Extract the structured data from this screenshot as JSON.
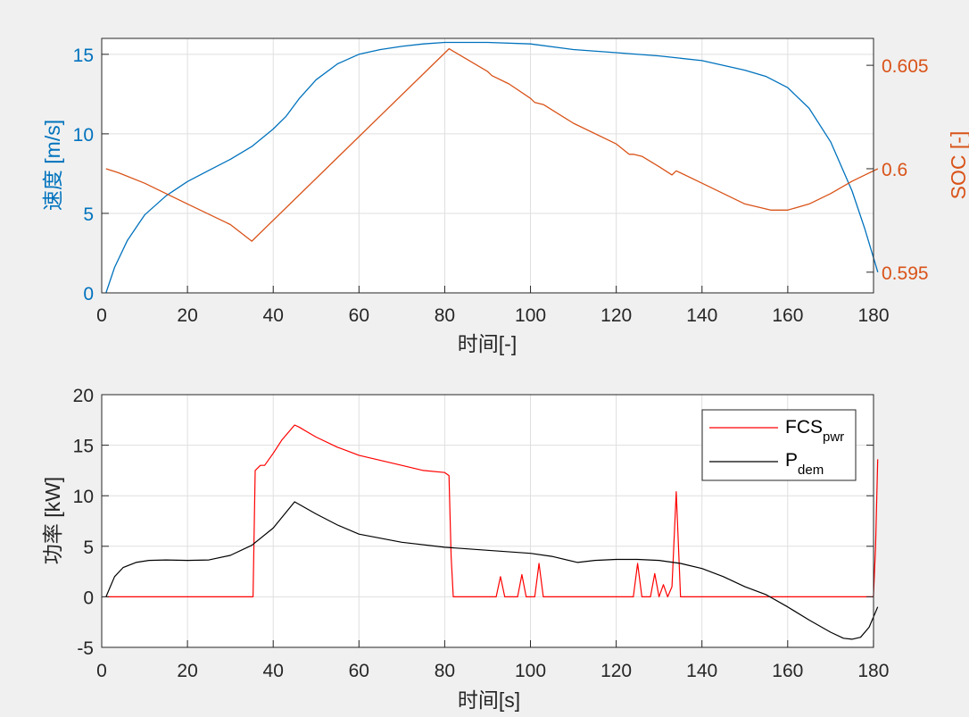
{
  "chart_data": [
    {
      "type": "line",
      "xlabel": "时间[-]",
      "ylabel_left": "速度 [m/s]",
      "ylabel_right": "SOC [-]",
      "xlim": [
        0,
        180
      ],
      "ylim_left": [
        0,
        16
      ],
      "ylim_right": [
        0.594,
        0.6063
      ],
      "xticks": [
        "0",
        "20",
        "40",
        "60",
        "80",
        "100",
        "120",
        "140",
        "160",
        "180"
      ],
      "yticks_left": [
        "0",
        "5",
        "10",
        "15"
      ],
      "yticks_right": [
        "0.595",
        "0.6",
        "0.605"
      ],
      "grid": true,
      "colors": {
        "left": "#0072bd",
        "right": "#d95319"
      },
      "series": [
        {
          "axis": "left",
          "color": "#0072bd",
          "x": [
            1,
            3,
            6,
            10,
            15,
            20,
            25,
            30,
            35,
            40,
            43,
            46,
            50,
            55,
            60,
            65,
            70,
            75,
            80,
            85,
            90,
            100,
            110,
            120,
            130,
            140,
            145,
            150,
            155,
            160,
            165,
            170,
            175,
            178,
            181
          ],
          "y": [
            0,
            1.6,
            3.3,
            4.9,
            6.1,
            7.0,
            7.7,
            8.4,
            9.2,
            10.3,
            11.1,
            12.2,
            13.4,
            14.4,
            15.0,
            15.3,
            15.5,
            15.65,
            15.75,
            15.75,
            15.75,
            15.65,
            15.3,
            15.1,
            14.9,
            14.6,
            14.3,
            14.0,
            13.6,
            12.9,
            11.6,
            9.5,
            6.4,
            4.0,
            1.3
          ]
        },
        {
          "axis": "right",
          "color": "#d95319",
          "x": [
            1,
            4,
            10,
            20,
            30,
            35,
            81,
            90,
            91,
            95,
            100,
            101,
            103,
            110,
            120,
            123,
            124,
            126,
            130,
            133,
            134,
            140,
            150,
            156,
            160,
            165,
            170,
            175,
            178,
            181
          ],
          "y": [
            0.6,
            0.5998,
            0.5993,
            0.5983,
            0.5973,
            0.5965,
            0.6058,
            0.6047,
            0.6045,
            0.6041,
            0.6034,
            0.6032,
            0.6031,
            0.6022,
            0.6012,
            0.6007,
            0.6007,
            0.6006,
            0.6001,
            0.5997,
            0.5999,
            0.5993,
            0.5983,
            0.598,
            0.598,
            0.5983,
            0.5988,
            0.5994,
            0.5997,
            0.6
          ]
        }
      ]
    },
    {
      "type": "line",
      "xlabel": "时间[s]",
      "ylabel": "功率 [kW]",
      "xlim": [
        0,
        181
      ],
      "ylim": [
        -5,
        20
      ],
      "xticks": [
        "0",
        "20",
        "40",
        "60",
        "80",
        "100",
        "120",
        "140",
        "160",
        "180"
      ],
      "yticks": [
        "-5",
        "0",
        "5",
        "10",
        "15",
        "20"
      ],
      "grid": true,
      "legend": "top-right",
      "series": [
        {
          "name_main": "FCS",
          "name_sub": "pwr",
          "color": "#ff0000",
          "x": [
            1,
            35.3,
            35.8,
            37,
            38,
            40,
            42,
            44,
            45,
            46,
            48,
            50,
            55,
            60,
            65,
            70,
            75,
            80,
            81,
            81.5,
            82,
            92,
            93,
            94,
            97,
            98,
            99,
            101,
            102,
            103,
            124,
            125,
            126,
            128,
            129,
            130,
            131,
            132,
            133,
            134,
            135,
            180,
            180.5,
            181
          ],
          "y": [
            0,
            0,
            12.5,
            13,
            13,
            14.2,
            15.5,
            16.5,
            17,
            16.8,
            16.3,
            15.8,
            14.8,
            14,
            13.5,
            13,
            12.5,
            12.3,
            12,
            4,
            0,
            0,
            2,
            0,
            0,
            2.2,
            0,
            0,
            3.3,
            0,
            0,
            3.3,
            0,
            0,
            2.3,
            0,
            1.2,
            0,
            1,
            10.4,
            0,
            0,
            5,
            13.6
          ]
        },
        {
          "name_main": "P",
          "name_sub": "dem",
          "color": "#000000",
          "x": [
            1,
            3,
            5,
            8,
            11,
            15,
            20,
            25,
            30,
            35,
            40,
            45,
            50,
            55,
            60,
            70,
            80,
            90,
            100,
            105,
            111,
            115,
            120,
            125,
            130,
            135,
            140,
            145,
            150,
            155,
            160,
            165,
            170,
            173,
            175,
            177,
            179,
            181
          ],
          "y": [
            0,
            2,
            2.9,
            3.4,
            3.6,
            3.65,
            3.6,
            3.65,
            4.1,
            5.1,
            6.8,
            9.4,
            8.2,
            7.1,
            6.2,
            5.4,
            4.9,
            4.6,
            4.3,
            4.0,
            3.4,
            3.6,
            3.7,
            3.7,
            3.6,
            3.3,
            2.8,
            2.0,
            1.0,
            0.2,
            -1.0,
            -2.3,
            -3.5,
            -4.1,
            -4.2,
            -4.0,
            -3.0,
            -1.0
          ]
        }
      ]
    }
  ]
}
